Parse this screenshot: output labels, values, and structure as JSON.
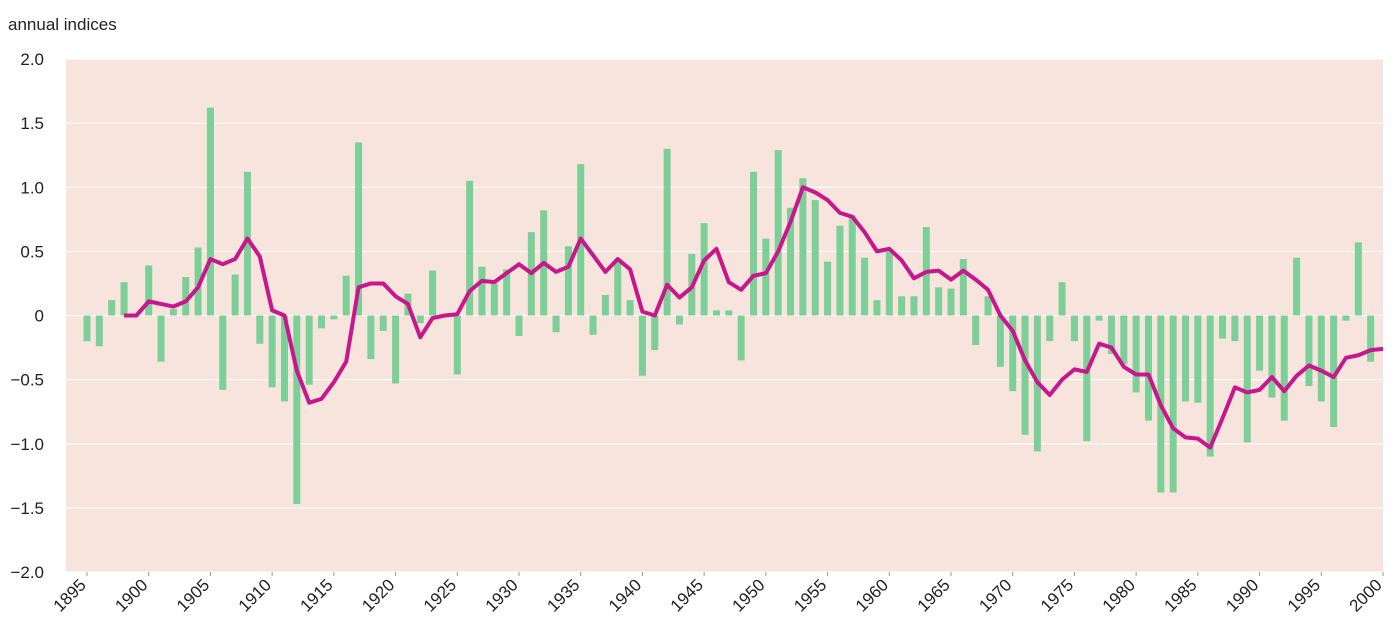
{
  "chart_data": {
    "type": "bar",
    "subtitle": "annual indices",
    "xlim": [
      1895,
      2000
    ],
    "xticks": [
      1895,
      1900,
      1905,
      1910,
      1915,
      1920,
      1925,
      1930,
      1935,
      1940,
      1945,
      1950,
      1955,
      1960,
      1965,
      1970,
      1975,
      1980,
      1985,
      1990,
      1995,
      2000
    ],
    "ylim": [
      -2,
      2
    ],
    "yticks": [
      {
        "value": -2,
        "label": "−2.0"
      },
      {
        "value": -1.5,
        "label": "−1.5"
      },
      {
        "value": -1,
        "label": "−1.0"
      },
      {
        "value": -0.5,
        "label": "−0.5"
      },
      0,
      0.5,
      {
        "value": 1,
        "label": "1.0"
      },
      1.5,
      {
        "value": 2,
        "label": "2.0"
      }
    ],
    "grid": true,
    "background": "#f7e4dc",
    "series": [
      {
        "type": "bar",
        "color": "#7dcf98",
        "x": [
          1895,
          1896,
          1897,
          1898,
          1899,
          1900,
          1901,
          1902,
          1903,
          1904,
          1905,
          1906,
          1907,
          1908,
          1909,
          1910,
          1911,
          1912,
          1913,
          1914,
          1915,
          1916,
          1917,
          1918,
          1919,
          1920,
          1921,
          1922,
          1923,
          1924,
          1925,
          1926,
          1927,
          1928,
          1929,
          1930,
          1931,
          1932,
          1933,
          1934,
          1935,
          1936,
          1937,
          1938,
          1939,
          1940,
          1941,
          1942,
          1943,
          1944,
          1945,
          1946,
          1947,
          1948,
          1949,
          1950,
          1951,
          1952,
          1953,
          1954,
          1955,
          1956,
          1957,
          1958,
          1959,
          1960,
          1961,
          1962,
          1963,
          1964,
          1965,
          1966,
          1967,
          1968,
          1969,
          1970,
          1971,
          1972,
          1973,
          1974,
          1975,
          1976,
          1977,
          1978,
          1979,
          1980,
          1981,
          1982,
          1983,
          1984,
          1985,
          1986,
          1987,
          1988,
          1989,
          1990,
          1991,
          1992,
          1993,
          1994,
          1995,
          1996,
          1997,
          1998,
          1999
        ],
        "values": [
          -0.2,
          -0.24,
          0.12,
          0.26,
          0,
          0.39,
          -0.36,
          0.05,
          0.3,
          0.53,
          1.62,
          -0.58,
          0.32,
          1.12,
          -0.22,
          -0.56,
          -0.67,
          -1.47,
          -0.54,
          -0.1,
          -0.03,
          0.31,
          1.35,
          -0.34,
          -0.12,
          -0.53,
          0.17,
          -0.06,
          0.35,
          0,
          -0.46,
          1.05,
          0.38,
          0.25,
          0.36,
          -0.16,
          0.65,
          0.82,
          -0.13,
          0.54,
          1.18,
          -0.15,
          0.16,
          0.44,
          0.12,
          -0.47,
          -0.27,
          1.3,
          -0.07,
          0.48,
          0.72,
          0.04,
          0.04,
          -0.35,
          1.12,
          0.6,
          1.29,
          0.84,
          1.07,
          0.9,
          0.42,
          0.7,
          0.78,
          0.45,
          0.12,
          0.5,
          0.15,
          0.15,
          0.69,
          0.22,
          0.21,
          0.44,
          -0.23,
          0.15,
          -0.4,
          -0.59,
          -0.93,
          -1.06,
          -0.2,
          0.26,
          -0.2,
          -0.98,
          -0.04,
          -0.3,
          -0.38,
          -0.6,
          -0.82,
          -1.38,
          -1.38,
          -0.67,
          -0.68,
          -1.1,
          -0.18,
          -0.2,
          -0.99,
          -0.43,
          -0.64,
          -0.82,
          0.45,
          -0.55,
          -0.67,
          -0.87,
          -0.04,
          0.57,
          -0.36
        ]
      },
      {
        "type": "line",
        "color": "#c8168c",
        "x": [
          1898,
          1899,
          1900,
          1901,
          1902,
          1903,
          1904,
          1905,
          1906,
          1907,
          1908,
          1909,
          1910,
          1911,
          1912,
          1913,
          1914,
          1915,
          1916,
          1917,
          1918,
          1919,
          1920,
          1921,
          1922,
          1923,
          1924,
          1925,
          1926,
          1927,
          1928,
          1929,
          1930,
          1931,
          1932,
          1933,
          1934,
          1935,
          1936,
          1937,
          1938,
          1939,
          1940,
          1941,
          1942,
          1943,
          1944,
          1945,
          1946,
          1947,
          1948,
          1949,
          1950,
          1951,
          1952,
          1953,
          1954,
          1955,
          1956,
          1957,
          1958,
          1959,
          1960,
          1961,
          1962,
          1963,
          1964,
          1965,
          1966,
          1967,
          1968,
          1969,
          1970,
          1971,
          1972,
          1973,
          1974,
          1975,
          1976,
          1977,
          1978,
          1979,
          1980,
          1981,
          1982,
          1983,
          1984,
          1985,
          1986,
          1987,
          1988,
          1989,
          1990,
          1991,
          1992,
          1993,
          1994,
          1995,
          1996,
          1997,
          1998,
          1999,
          2000
        ],
        "values": [
          0,
          0,
          0.11,
          0.09,
          0.07,
          0.11,
          0.22,
          0.44,
          0.4,
          0.44,
          0.6,
          0.46,
          0.04,
          0,
          -0.43,
          -0.68,
          -0.65,
          -0.52,
          -0.36,
          0.22,
          0.25,
          0.25,
          0.15,
          0.09,
          -0.17,
          -0.02,
          0,
          0.01,
          0.19,
          0.27,
          0.26,
          0.33,
          0.4,
          0.33,
          0.41,
          0.34,
          0.38,
          0.6,
          0.47,
          0.34,
          0.44,
          0.36,
          0.03,
          0,
          0.24,
          0.14,
          0.22,
          0.43,
          0.52,
          0.26,
          0.2,
          0.31,
          0.33,
          0.5,
          0.73,
          1,
          0.96,
          0.9,
          0.8,
          0.77,
          0.65,
          0.5,
          0.52,
          0.43,
          0.29,
          0.34,
          0.35,
          0.28,
          0.35,
          0.28,
          0.2,
          0,
          -0.12,
          -0.35,
          -0.52,
          -0.62,
          -0.5,
          -0.42,
          -0.44,
          -0.22,
          -0.25,
          -0.4,
          -0.46,
          -0.46,
          -0.7,
          -0.88,
          -0.95,
          -0.96,
          -1.03,
          -0.8,
          -0.56,
          -0.6,
          -0.58,
          -0.48,
          -0.59,
          -0.47,
          -0.39,
          -0.43,
          -0.48,
          -0.33,
          -0.31,
          -0.27,
          -0.26
        ]
      }
    ]
  }
}
